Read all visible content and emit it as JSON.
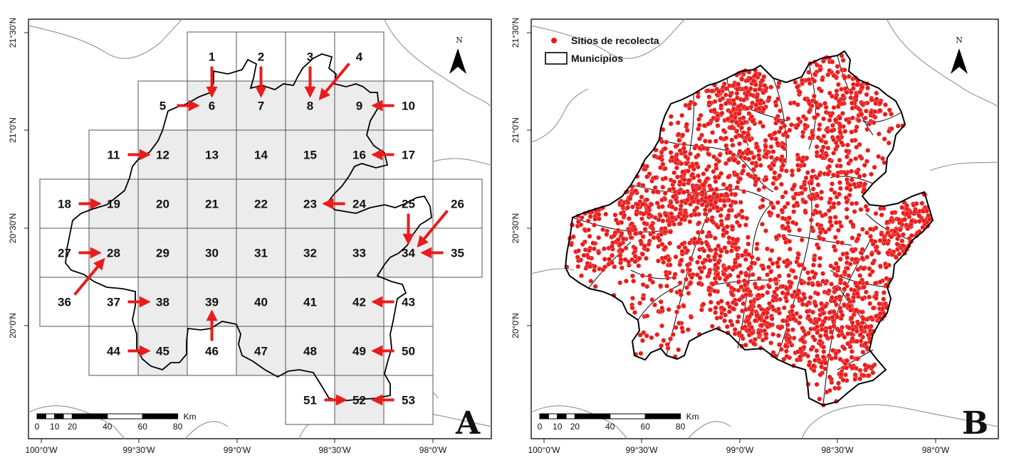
{
  "panel_a": {
    "label": "A",
    "grid_numbers": [
      "1",
      "2",
      "3",
      "4",
      "5",
      "6",
      "7",
      "8",
      "9",
      "10",
      "11",
      "12",
      "13",
      "14",
      "15",
      "16",
      "17",
      "18",
      "19",
      "20",
      "21",
      "22",
      "23",
      "24",
      "25",
      "26",
      "27",
      "28",
      "29",
      "30",
      "31",
      "32",
      "33",
      "34",
      "35",
      "36",
      "37",
      "38",
      "39",
      "40",
      "41",
      "42",
      "43",
      "44",
      "45",
      "46",
      "47",
      "48",
      "49",
      "50",
      "51",
      "52",
      "53"
    ],
    "north_label": "N"
  },
  "panel_b": {
    "label": "B",
    "north_label": "N",
    "legend": {
      "points_label": "Sitios de recolecta",
      "municipalities_label": "Municipios"
    },
    "point_color": "#e81c1c"
  },
  "axes": {
    "lat_labels": [
      "21°30'N",
      "21°0'N",
      "20°30'N",
      "20°0'N"
    ],
    "lon_labels": [
      "100°0'W",
      "99°30'W",
      "99°0'W",
      "98°30'W",
      "98°0'W"
    ]
  },
  "scale_bar": {
    "unit": "Km",
    "ticks": [
      "0",
      "10",
      "20",
      "40",
      "60",
      "80"
    ]
  },
  "colors": {
    "arrow": "#e81c1c",
    "grid_fill": "#ececec",
    "boundary": "#000000",
    "outer_boundary": "#999999"
  }
}
